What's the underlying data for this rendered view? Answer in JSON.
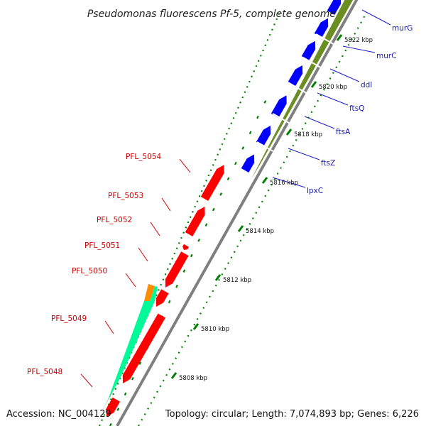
{
  "title": "Pseudomonas fluorescens Pf-5, complete genome",
  "footer": {
    "accession": "Accession: NC_004129",
    "topology": "Topology: circular; Length: 7,074,893 bp; Genes: 6,226"
  },
  "colors": {
    "backbone": "#7f7f7f",
    "minus_strand_gene": "#ff0000",
    "plus_strand_gene": "#0000ff",
    "cog_olive": "#6b8e23",
    "cog_spring_green": "#00fa9a",
    "cog_khaki": "#f0e68c",
    "cog_orange": "#ff8c00",
    "dots_green": "#008000",
    "label_minus": "#cc0000",
    "label_plus": "#1a1aa8"
  },
  "scale_ticks": [
    "5808 kbp",
    "5810 kbp",
    "5812 kbp",
    "5814 kbp",
    "5816 kbp",
    "5818 kbp",
    "5820 kbp",
    "5822 kbp"
  ],
  "left_labels": [
    "PFL_5048",
    "PFL_5049",
    "PFL_5050",
    "PFL_5051",
    "PFL_5052",
    "PFL_5053",
    "PFL_5054"
  ],
  "right_labels": [
    "lpxC",
    "ftsZ",
    "ftsA",
    "ftsQ",
    "ddl",
    "murC",
    "murG"
  ]
}
